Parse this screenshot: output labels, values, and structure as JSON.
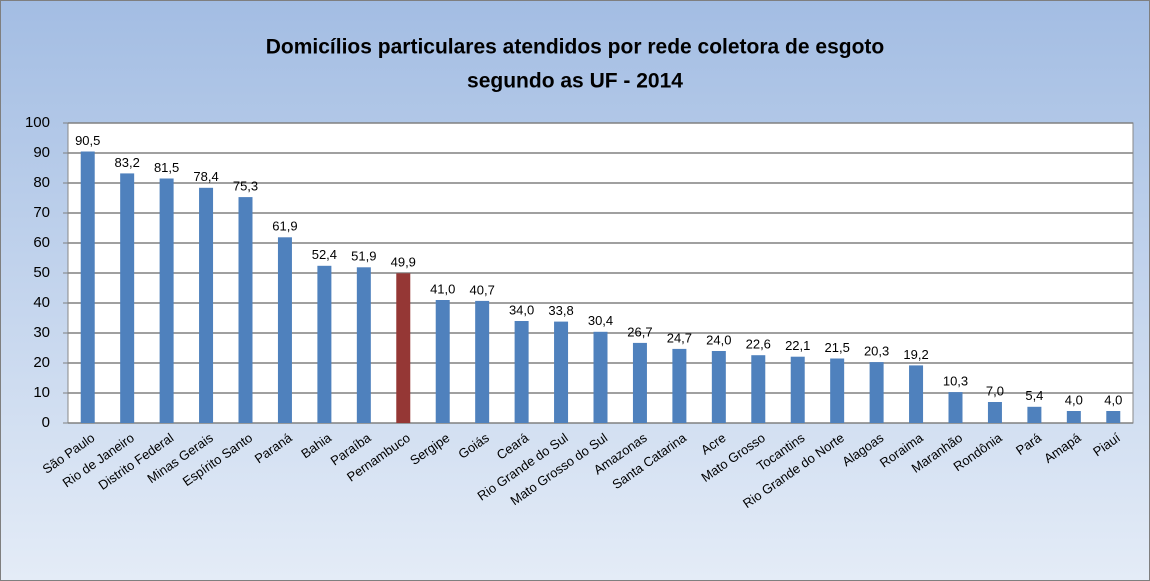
{
  "chart_data": {
    "type": "bar",
    "title": [
      "Domicílios particulares atendidos por  rede coletora de esgoto",
      "segundo as UF - 2014"
    ],
    "categories": [
      "São Paulo",
      "Rio de Janeiro",
      "Distrito Federal",
      "Minas Gerais",
      "Espírito Santo",
      "Paraná",
      "Bahia",
      "Paraíba",
      "Pernambuco",
      "Sergipe",
      "Goiás",
      "Ceará",
      "Rio Grande do Sul",
      "Mato Grosso do Sul",
      "Amazonas",
      "Santa Catarina",
      "Acre",
      "Mato Grosso",
      "Tocantins",
      "Rio Grande do Norte",
      "Alagoas",
      "Roraima",
      "Maranhão",
      "Rondônia",
      "Pará",
      "Amapá",
      "Piauí"
    ],
    "values": [
      90.5,
      83.2,
      81.5,
      78.4,
      75.3,
      61.9,
      52.4,
      51.9,
      49.9,
      41.0,
      40.7,
      34.0,
      33.8,
      30.4,
      26.7,
      24.7,
      24.0,
      22.6,
      22.1,
      21.5,
      20.3,
      19.2,
      10.3,
      7.0,
      5.4,
      4.0,
      4.0
    ],
    "value_labels": [
      "90,5",
      "83,2",
      "81,5",
      "78,4",
      "75,3",
      "61,9",
      "52,4",
      "51,9",
      "49,9",
      "41,0",
      "40,7",
      "34,0",
      "33,8",
      "30,4",
      "26,7",
      "24,7",
      "24,0",
      "22,6",
      "22,1",
      "21,5",
      "20,3",
      "19,2",
      "10,3",
      "7,0",
      "5,4",
      "4,0",
      "4,0"
    ],
    "colors": [
      "#4f81bd",
      "#4f81bd",
      "#4f81bd",
      "#4f81bd",
      "#4f81bd",
      "#4f81bd",
      "#4f81bd",
      "#4f81bd",
      "#953735",
      "#4f81bd",
      "#4f81bd",
      "#4f81bd",
      "#4f81bd",
      "#4f81bd",
      "#4f81bd",
      "#4f81bd",
      "#4f81bd",
      "#4f81bd",
      "#4f81bd",
      "#4f81bd",
      "#4f81bd",
      "#4f81bd",
      "#4f81bd",
      "#4f81bd",
      "#4f81bd",
      "#4f81bd",
      "#4f81bd"
    ],
    "ylim": [
      0,
      100
    ],
    "yticks": [
      0,
      10,
      20,
      30,
      40,
      50,
      60,
      70,
      80,
      90,
      100
    ],
    "grid": true
  }
}
